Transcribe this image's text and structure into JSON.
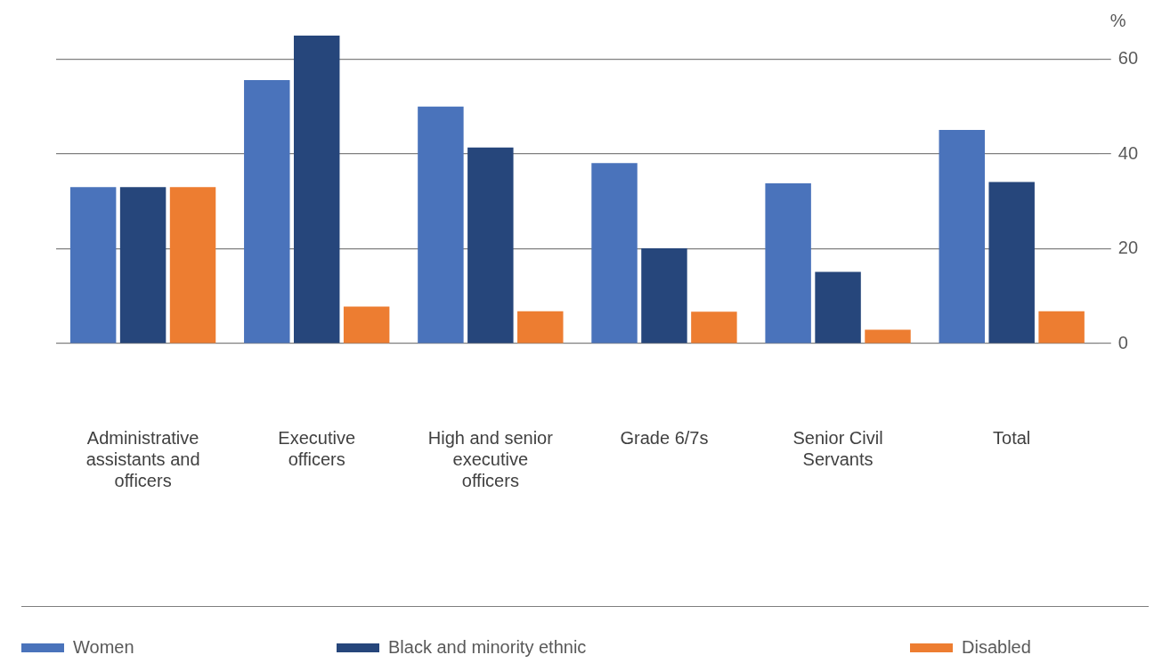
{
  "chart_data": {
    "type": "bar",
    "ylabel": "%",
    "categories": [
      "Administrative assistants and officers",
      "Executive officers",
      "High and senior executive officers",
      "Grade 6/7s",
      "Senior Civil Servants",
      "Total"
    ],
    "series": [
      {
        "name": "Women",
        "color": "#4a73bb",
        "values": [
          33,
          55.6,
          50,
          38.1,
          33.8,
          45.1
        ]
      },
      {
        "name": "Black and minority ethnic",
        "color": "#26467b",
        "values": [
          33,
          65,
          41.4,
          20.1,
          15.1,
          34.1
        ]
      },
      {
        "name": "Disabled",
        "color": "#ed7d31",
        "values": [
          33,
          7.8,
          6.8,
          6.7,
          2.9,
          6.8
        ]
      }
    ],
    "ylim": [
      0,
      65
    ],
    "yticks": [
      0,
      20,
      40,
      60
    ],
    "grid": "y",
    "legend": "bottom"
  }
}
